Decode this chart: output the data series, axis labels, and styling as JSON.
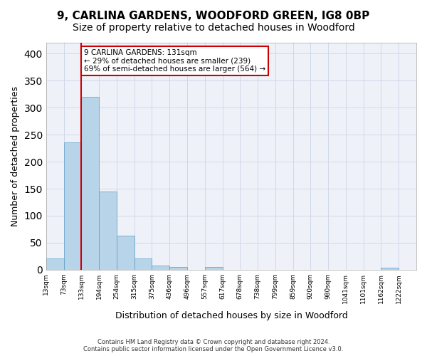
{
  "title": "9, CARLINA GARDENS, WOODFORD GREEN, IG8 0BP",
  "subtitle": "Size of property relative to detached houses in Woodford",
  "xlabel": "Distribution of detached houses by size in Woodford",
  "ylabel": "Number of detached properties",
  "footer_line1": "Contains HM Land Registry data © Crown copyright and database right 2024.",
  "footer_line2": "Contains public sector information licensed under the Open Government Licence v3.0.",
  "bin_labels": [
    "13sqm",
    "73sqm",
    "133sqm",
    "194sqm",
    "254sqm",
    "315sqm",
    "375sqm",
    "436sqm",
    "496sqm",
    "557sqm",
    "617sqm",
    "678sqm",
    "738sqm",
    "799sqm",
    "859sqm",
    "920sqm",
    "980sqm",
    "1041sqm",
    "1101sqm",
    "1162sqm",
    "1222sqm"
  ],
  "bar_heights": [
    21,
    235,
    320,
    145,
    63,
    21,
    8,
    5,
    0,
    5,
    0,
    0,
    0,
    0,
    0,
    0,
    0,
    0,
    0,
    4,
    0
  ],
  "bar_color": "#b8d4e8",
  "bar_edge_color": "#5a9dc8",
  "grid_color": "#d0d8e8",
  "background_color": "#eef2f8",
  "annotation_line1": "9 CARLINA GARDENS: 131sqm",
  "annotation_line2": "← 29% of detached houses are smaller (239)",
  "annotation_line3": "69% of semi-detached houses are larger (564) →",
  "annotation_box_color": "#ffffff",
  "annotation_box_edge": "#cc0000",
  "red_line_x": 2,
  "red_line_color": "#cc0000",
  "ylim": [
    0,
    420
  ],
  "yticks": [
    0,
    50,
    100,
    150,
    200,
    250,
    300,
    350,
    400
  ],
  "title_fontsize": 11,
  "subtitle_fontsize": 10,
  "xlabel_fontsize": 9,
  "ylabel_fontsize": 9
}
